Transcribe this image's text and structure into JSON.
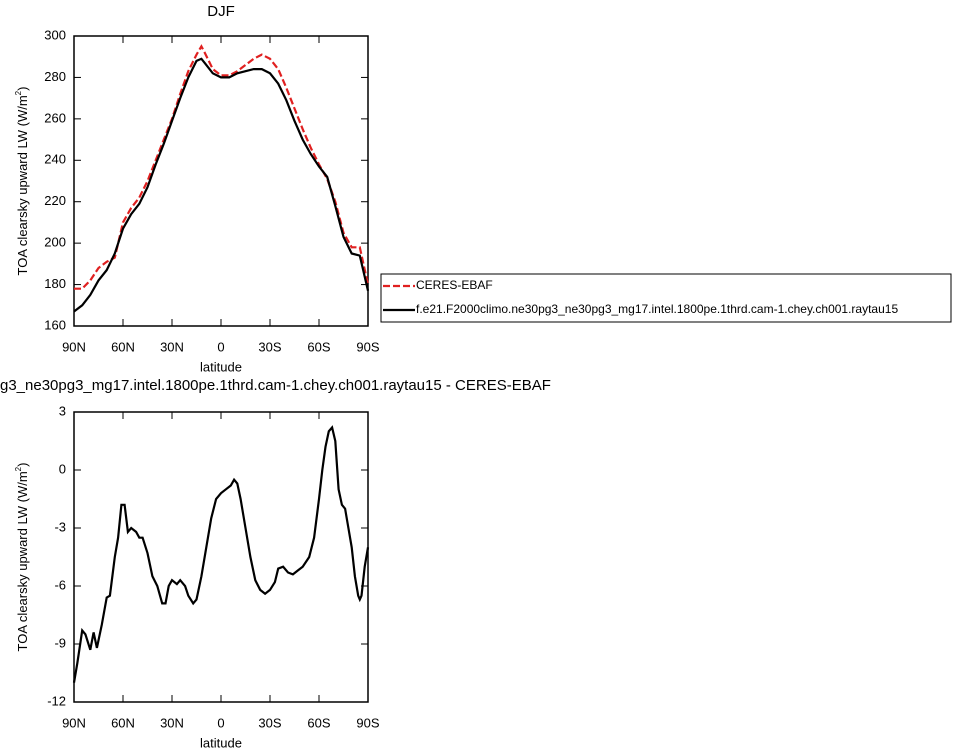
{
  "chart_data": [
    {
      "type": "line",
      "title": "DJF",
      "xlabel": "latitude",
      "ylabel": {
        "text": "TOA clearsky upward LW (W/m",
        "sup": "2",
        "tail": ")"
      },
      "x": [
        90,
        85,
        80,
        75,
        70,
        65,
        60,
        55,
        50,
        45,
        40,
        35,
        30,
        25,
        20,
        15,
        12,
        10,
        5,
        0,
        -5,
        -10,
        -15,
        -20,
        -25,
        -30,
        -35,
        -40,
        -45,
        -50,
        -55,
        -60,
        -65,
        -70,
        -75,
        -80,
        -85,
        -90
      ],
      "series": [
        {
          "name": "CERES-EBAF",
          "color": "#e02020",
          "dash": "dashed",
          "values": [
            178,
            178,
            182,
            188,
            191,
            193,
            210,
            217,
            222,
            230,
            240,
            250,
            260,
            272,
            283,
            291,
            295,
            292,
            284,
            281,
            281,
            283,
            286,
            289,
            291,
            289,
            284,
            275,
            265,
            255,
            246,
            238,
            231,
            220,
            205,
            198,
            198,
            180
          ]
        },
        {
          "name": "f.e21.F2000climo.ne30pg3_ne30pg3_mg17.intel.1800pe.1thrd.cam-1.chey.ch001.raytau15",
          "color": "#000000",
          "dash": "solid",
          "values": [
            167,
            170,
            175,
            182,
            187,
            195,
            207,
            214,
            219,
            227,
            238,
            248,
            259,
            270,
            280,
            288,
            289,
            287,
            282,
            280,
            280,
            282,
            283,
            284,
            284,
            282,
            277,
            269,
            259,
            250,
            243,
            237,
            232,
            218,
            203,
            195,
            194,
            177
          ]
        }
      ],
      "xlim": [
        90,
        -90
      ],
      "xticks": [
        {
          "value": 90,
          "label": "90N"
        },
        {
          "value": 60,
          "label": "60N"
        },
        {
          "value": 30,
          "label": "30N"
        },
        0,
        {
          "value": -30,
          "label": "30S"
        },
        {
          "value": -60,
          "label": "60S"
        },
        {
          "value": -90,
          "label": "90S"
        }
      ],
      "ylim": [
        160,
        300
      ],
      "yticks": [
        160,
        180,
        200,
        220,
        240,
        260,
        280,
        300
      ]
    },
    {
      "type": "line",
      "title": "g3_ne30pg3_mg17.intel.1800pe.1thrd.cam-1.chey.ch001.raytau15 - CERES-EBAF",
      "xlabel": "latitude",
      "ylabel": {
        "text": "TOA clearsky upward LW (W/m",
        "sup": "2",
        "tail": ")"
      },
      "x": [
        90,
        88,
        85,
        83,
        80,
        78,
        76,
        73,
        70,
        68,
        65,
        63,
        61,
        59,
        57,
        55,
        52,
        50,
        48,
        45,
        42,
        39,
        36,
        34,
        32,
        30,
        27,
        25,
        22,
        20,
        17,
        15,
        12,
        9,
        6,
        3,
        0,
        -3,
        -6,
        -8,
        -10,
        -12,
        -15,
        -18,
        -21,
        -24,
        -27,
        -30,
        -33,
        -35,
        -38,
        -41,
        -44,
        -47,
        -50,
        -54,
        -57,
        -60,
        -62,
        -64,
        -66,
        -68,
        -70,
        -72,
        -74,
        -76,
        -78,
        -80,
        -82,
        -84,
        -85,
        -86,
        -88,
        -90
      ],
      "series": [
        {
          "color": "#000000",
          "dash": "solid",
          "values": [
            -11,
            -10,
            -8.3,
            -8.5,
            -9.3,
            -8.4,
            -9.2,
            -8,
            -6.6,
            -6.5,
            -4.5,
            -3.5,
            -1.8,
            -1.8,
            -3.2,
            -3,
            -3.2,
            -3.5,
            -3.5,
            -4.3,
            -5.5,
            -6,
            -6.9,
            -6.9,
            -6,
            -5.7,
            -5.9,
            -5.7,
            -6,
            -6.5,
            -6.9,
            -6.7,
            -5.5,
            -4,
            -2.5,
            -1.5,
            -1.2,
            -1,
            -0.8,
            -0.5,
            -0.7,
            -1.5,
            -3,
            -4.5,
            -5.7,
            -6.2,
            -6.4,
            -6.2,
            -5.8,
            -5.1,
            -5,
            -5.3,
            -5.4,
            -5.2,
            -5,
            -4.5,
            -3.5,
            -1.5,
            0,
            1.2,
            2,
            2.2,
            1.5,
            -1,
            -1.8,
            -2,
            -3,
            -4,
            -5.5,
            -6.5,
            -6.7,
            -6.5,
            -5,
            -4
          ]
        }
      ],
      "xlim": [
        90,
        -90
      ],
      "xticks": [
        {
          "value": 90,
          "label": "90N"
        },
        {
          "value": 60,
          "label": "60N"
        },
        {
          "value": 30,
          "label": "30N"
        },
        0,
        {
          "value": -30,
          "label": "30S"
        },
        {
          "value": -60,
          "label": "60S"
        },
        {
          "value": -90,
          "label": "90S"
        }
      ],
      "ylim": [
        -12,
        3
      ],
      "yticks": [
        -12,
        -9,
        -6,
        -3,
        0,
        3
      ]
    }
  ]
}
